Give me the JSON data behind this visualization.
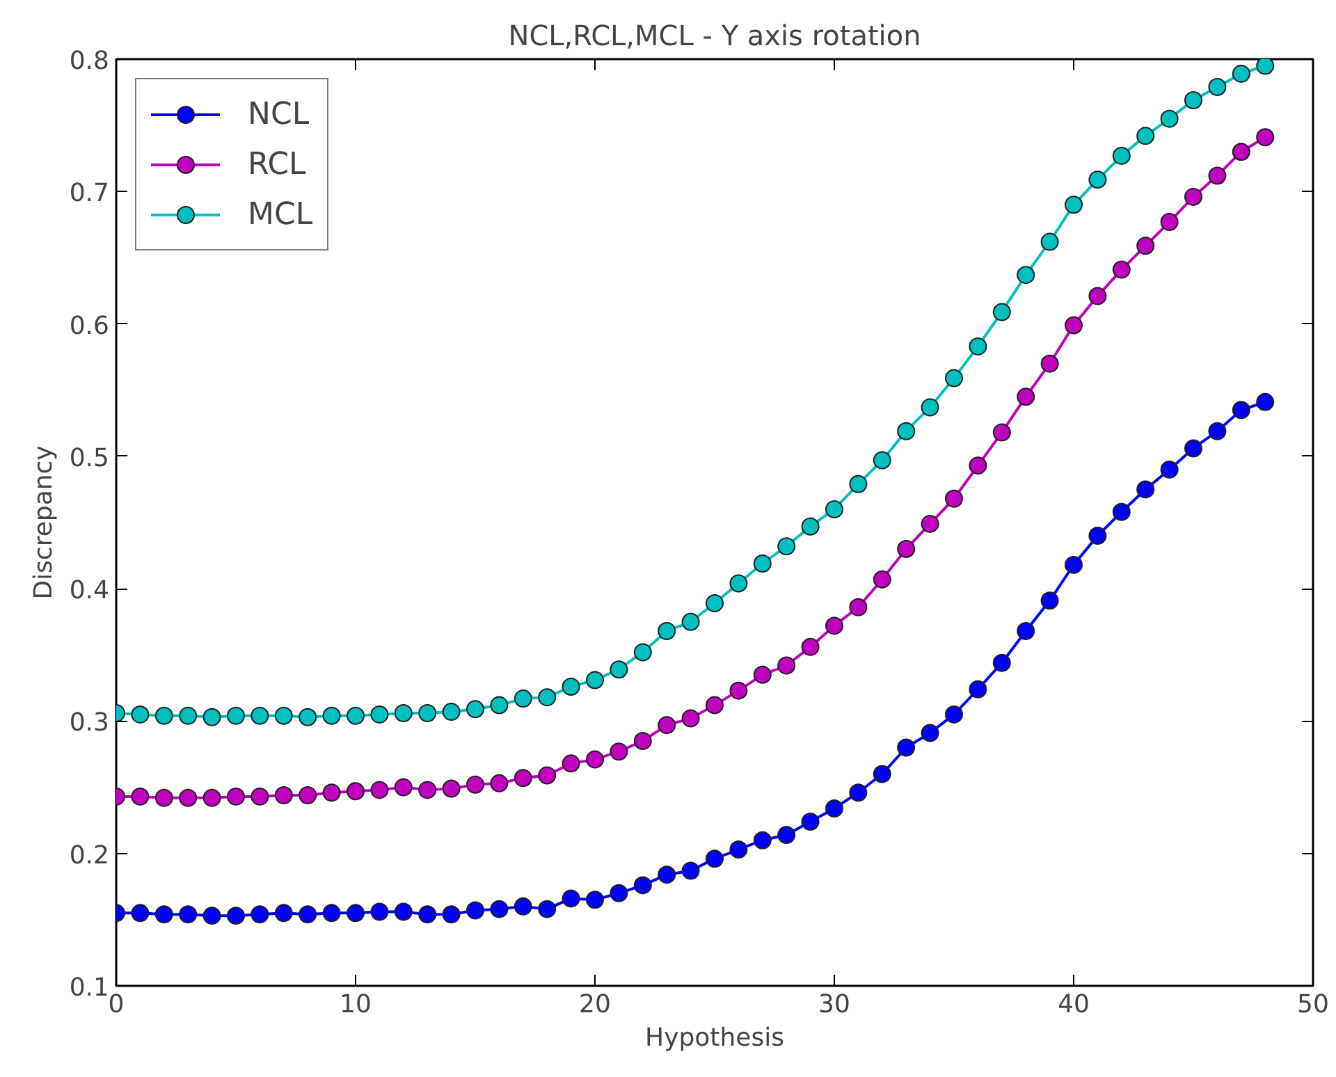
{
  "chart_data": {
    "type": "line",
    "title": "NCL,RCL,MCL - Y axis rotation",
    "xlabel": "Hypothesis",
    "ylabel": "Discrepancy",
    "x": [
      0,
      1,
      2,
      3,
      4,
      5,
      6,
      7,
      8,
      9,
      10,
      11,
      12,
      13,
      14,
      15,
      16,
      17,
      18,
      19,
      20,
      21,
      22,
      23,
      24,
      25,
      26,
      27,
      28,
      29,
      30,
      31,
      32,
      33,
      34,
      35,
      36,
      37,
      38,
      39,
      40,
      41,
      42,
      43,
      44,
      45,
      46,
      47,
      48
    ],
    "series": [
      {
        "name": "NCL",
        "color": "#0000ff",
        "values": [
          0.155,
          0.155,
          0.154,
          0.154,
          0.153,
          0.153,
          0.154,
          0.155,
          0.154,
          0.155,
          0.155,
          0.156,
          0.156,
          0.154,
          0.154,
          0.157,
          0.158,
          0.16,
          0.158,
          0.166,
          0.165,
          0.17,
          0.176,
          0.184,
          0.187,
          0.196,
          0.203,
          0.21,
          0.214,
          0.224,
          0.234,
          0.246,
          0.26,
          0.28,
          0.291,
          0.305,
          0.324,
          0.344,
          0.368,
          0.391,
          0.418,
          0.44,
          0.458,
          0.475,
          0.49,
          0.506,
          0.519,
          0.535,
          0.541
        ]
      },
      {
        "name": "RCL",
        "color": "#bf00bf",
        "values": [
          0.243,
          0.243,
          0.242,
          0.242,
          0.242,
          0.243,
          0.243,
          0.244,
          0.244,
          0.246,
          0.247,
          0.248,
          0.25,
          0.248,
          0.249,
          0.252,
          0.253,
          0.257,
          0.259,
          0.268,
          0.271,
          0.277,
          0.285,
          0.297,
          0.302,
          0.312,
          0.323,
          0.335,
          0.342,
          0.356,
          0.372,
          0.386,
          0.407,
          0.43,
          0.449,
          0.468,
          0.493,
          0.518,
          0.545,
          0.57,
          0.599,
          0.621,
          0.641,
          0.659,
          0.677,
          0.696,
          0.712,
          0.73,
          0.741
        ]
      },
      {
        "name": "MCL",
        "color": "#00bfbf",
        "values": [
          0.306,
          0.305,
          0.304,
          0.304,
          0.303,
          0.304,
          0.304,
          0.304,
          0.303,
          0.304,
          0.304,
          0.305,
          0.306,
          0.306,
          0.307,
          0.309,
          0.312,
          0.317,
          0.318,
          0.326,
          0.331,
          0.339,
          0.352,
          0.368,
          0.375,
          0.389,
          0.404,
          0.419,
          0.432,
          0.447,
          0.46,
          0.479,
          0.497,
          0.519,
          0.537,
          0.559,
          0.583,
          0.609,
          0.637,
          0.662,
          0.69,
          0.709,
          0.727,
          0.742,
          0.755,
          0.769,
          0.779,
          0.789,
          0.795
        ]
      }
    ],
    "xlim": [
      0,
      50
    ],
    "xticks": [
      0,
      10,
      20,
      30,
      40,
      50
    ],
    "ylim": [
      0.1,
      0.8
    ],
    "yticks": [
      0.1,
      0.2,
      0.3,
      0.4,
      0.5,
      0.6,
      0.7,
      0.8
    ],
    "grid": false,
    "legend": "top left",
    "marker": "circle",
    "line_style": "solid"
  }
}
